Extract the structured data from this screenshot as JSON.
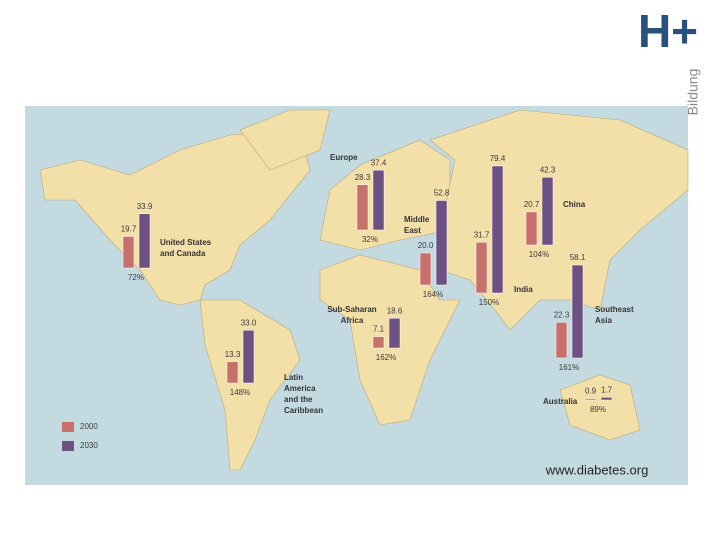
{
  "logo": {
    "mark": "H+",
    "text": "Bildung"
  },
  "map": {
    "legend": [
      {
        "label": "2000",
        "color": "#c8706c"
      },
      {
        "label": "2030",
        "color": "#6d5182"
      }
    ],
    "regions": [
      {
        "name": [
          "United States",
          "and Canada"
        ],
        "values": [
          19.7,
          33.9
        ],
        "value_labels": [
          "19.7",
          "33.9"
        ],
        "change": "72%"
      },
      {
        "name": [
          "Europe"
        ],
        "values": [
          28.3,
          37.4
        ],
        "value_labels": [
          "28.3",
          "37.4"
        ],
        "change": "32%"
      },
      {
        "name": [
          "Middle",
          "East"
        ],
        "values": [
          20.0,
          52.8
        ],
        "value_labels": [
          "20.0",
          "52.8"
        ],
        "change": "164%"
      },
      {
        "name": [
          "India"
        ],
        "values": [
          31.7,
          79.4
        ],
        "value_labels": [
          "31.7",
          "79.4"
        ],
        "change": "150%"
      },
      {
        "name": [
          "China"
        ],
        "values": [
          20.7,
          42.3
        ],
        "value_labels": [
          "20.7",
          "42.3"
        ],
        "change": "104%"
      },
      {
        "name": [
          "Southeast",
          "Asia"
        ],
        "values": [
          22.3,
          58.1
        ],
        "value_labels": [
          "22.3",
          "58.1"
        ],
        "change": "161%"
      },
      {
        "name": [
          "Sub-Saharan",
          "Africa"
        ],
        "values": [
          7.1,
          18.6
        ],
        "value_labels": [
          "7.1",
          "18.6"
        ],
        "change": "162%"
      },
      {
        "name": [
          "Latin",
          "America",
          "and the",
          "Caribbean"
        ],
        "values": [
          13.3,
          33.0
        ],
        "value_labels": [
          "13.3",
          "33.0"
        ],
        "change": "148%"
      },
      {
        "name": [
          "Australia"
        ],
        "values": [
          0.9,
          1.7
        ],
        "value_labels": [
          "0.9",
          "1.7"
        ],
        "change": "89%"
      }
    ]
  },
  "source": "www.diabetes.org"
}
